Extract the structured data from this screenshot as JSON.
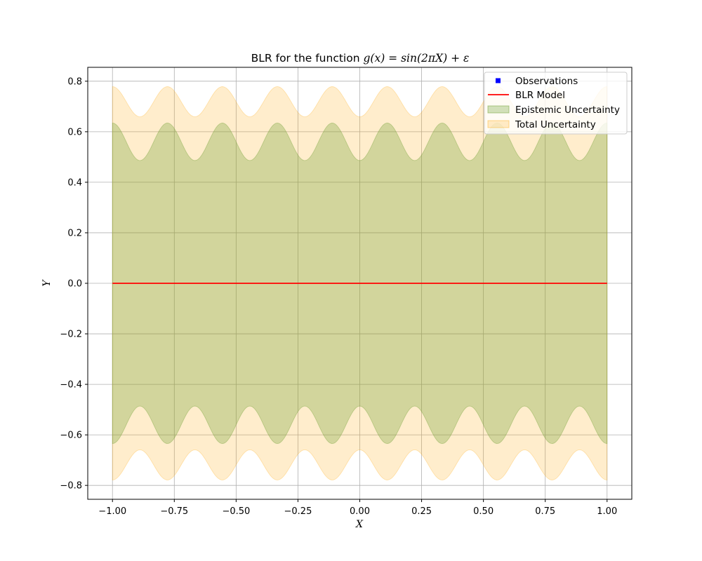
{
  "chart_data": {
    "type": "area",
    "title_prefix": "BLR for the function ",
    "title_math": "g(x) = sin(2πX) + ε",
    "xlabel": "X",
    "ylabel": "Y",
    "xlim": [
      -1.1,
      1.1
    ],
    "ylim": [
      -0.855,
      0.855
    ],
    "x_ticks": [
      -1.0,
      -0.75,
      -0.5,
      -0.25,
      0.0,
      0.25,
      0.5,
      0.75,
      1.0
    ],
    "x_tick_labels": [
      "−1.00",
      "−0.75",
      "−0.50",
      "−0.25",
      "0.00",
      "0.25",
      "0.50",
      "0.75",
      "1.00"
    ],
    "y_ticks": [
      -0.8,
      -0.6,
      -0.4,
      -0.2,
      0.0,
      0.2,
      0.4,
      0.6,
      0.8
    ],
    "y_tick_labels": [
      "−0.8",
      "−0.6",
      "−0.4",
      "−0.2",
      "0.0",
      "0.2",
      "0.4",
      "0.6",
      "0.8"
    ],
    "grid": true,
    "legend_position": "top-right",
    "x_range": [
      -1.0,
      1.0
    ],
    "series": [
      {
        "name": "Observations",
        "kind": "scatter",
        "color": "#0000ff",
        "points": []
      },
      {
        "name": "BLR Model",
        "kind": "line",
        "color": "#ff0000",
        "x": [
          -1.0,
          1.0
        ],
        "y": [
          0.0,
          0.0
        ]
      },
      {
        "name": "Epistemic Uncertainty",
        "kind": "band",
        "color": "#6b9e2f",
        "opacity": 0.3,
        "center": 0.5603,
        "amplitude": 0.0743,
        "period": 0.2222,
        "peak_at": -1.0
      },
      {
        "name": "Total Uncertainty",
        "kind": "band",
        "color": "#ffa500",
        "opacity": 0.2,
        "center": 0.7189,
        "amplitude": 0.0597,
        "period": 0.2222,
        "peak_at": -1.0
      }
    ]
  },
  "colors": {
    "grid": "#b0b0b0",
    "axes": "#000000",
    "legend_border": "#cccccc"
  }
}
